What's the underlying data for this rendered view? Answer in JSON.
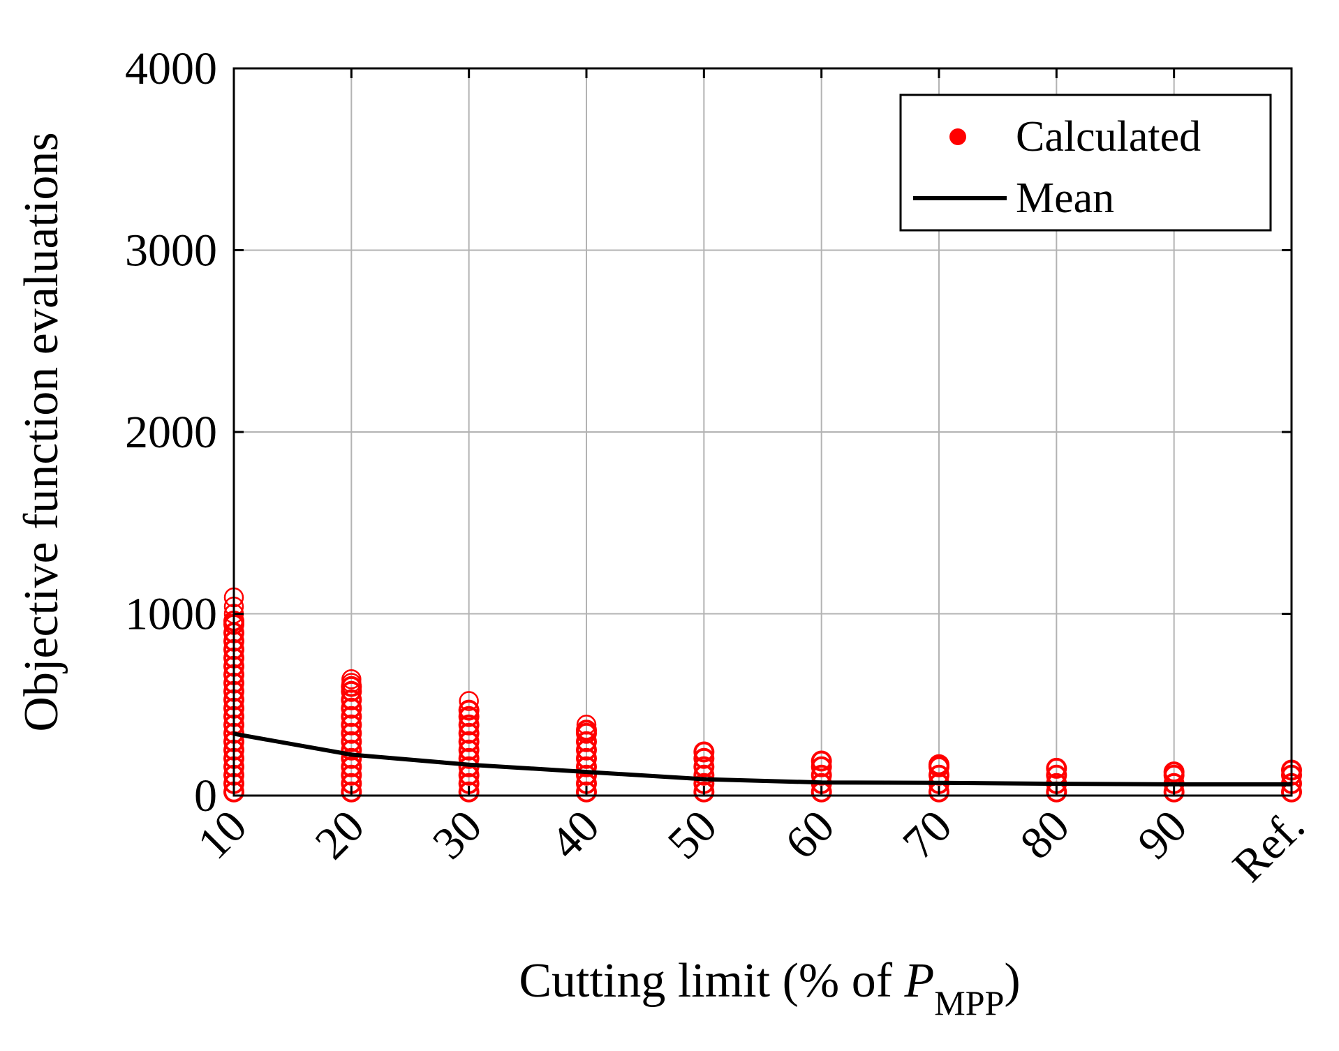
{
  "chart_data": {
    "type": "scatter",
    "title": "",
    "xlabel": "Cutting limit (% of P_MPP)",
    "xlabel_parts": {
      "prefix": "Cutting limit (% of ",
      "variable": "P",
      "subscript": "MPP",
      "suffix": ")"
    },
    "ylabel": "Objective function evaluations",
    "categories": [
      "10",
      "20",
      "30",
      "40",
      "50",
      "60",
      "70",
      "80",
      "90",
      "Ref."
    ],
    "ylim": [
      0,
      4000
    ],
    "yticks": [
      0,
      1000,
      2000,
      3000,
      4000
    ],
    "ytick_labels": [
      "0",
      "1000",
      "2000",
      "3000",
      "4000"
    ],
    "grid": true,
    "legend": {
      "position": "top-right",
      "entries": [
        "Calculated",
        "Mean"
      ]
    },
    "series": [
      {
        "name": "Calculated",
        "kind": "markers",
        "color": "#ff0000",
        "ranges": [
          {
            "category": "10",
            "min": 20,
            "max": 960
          },
          {
            "category": "20",
            "min": 20,
            "max": 600
          },
          {
            "category": "30",
            "min": 20,
            "max": 470
          },
          {
            "category": "40",
            "min": 20,
            "max": 360
          },
          {
            "category": "50",
            "min": 20,
            "max": 240
          },
          {
            "category": "60",
            "min": 20,
            "max": 190
          },
          {
            "category": "70",
            "min": 20,
            "max": 170
          },
          {
            "category": "80",
            "min": 20,
            "max": 150
          },
          {
            "category": "90",
            "min": 20,
            "max": 130
          },
          {
            "category": "Ref.",
            "min": 20,
            "max": 140
          }
        ],
        "outliers": [
          {
            "category": "10",
            "values": [
              1000,
              1040,
              1090
            ]
          },
          {
            "category": "20",
            "values": [
              620,
              640
            ]
          },
          {
            "category": "30",
            "values": [
              520
            ]
          },
          {
            "category": "40",
            "values": [
              390
            ]
          }
        ]
      },
      {
        "name": "Mean",
        "kind": "line",
        "color": "#000000",
        "values": [
          340,
          225,
          170,
          130,
          90,
          72,
          70,
          65,
          62,
          62
        ]
      }
    ]
  }
}
